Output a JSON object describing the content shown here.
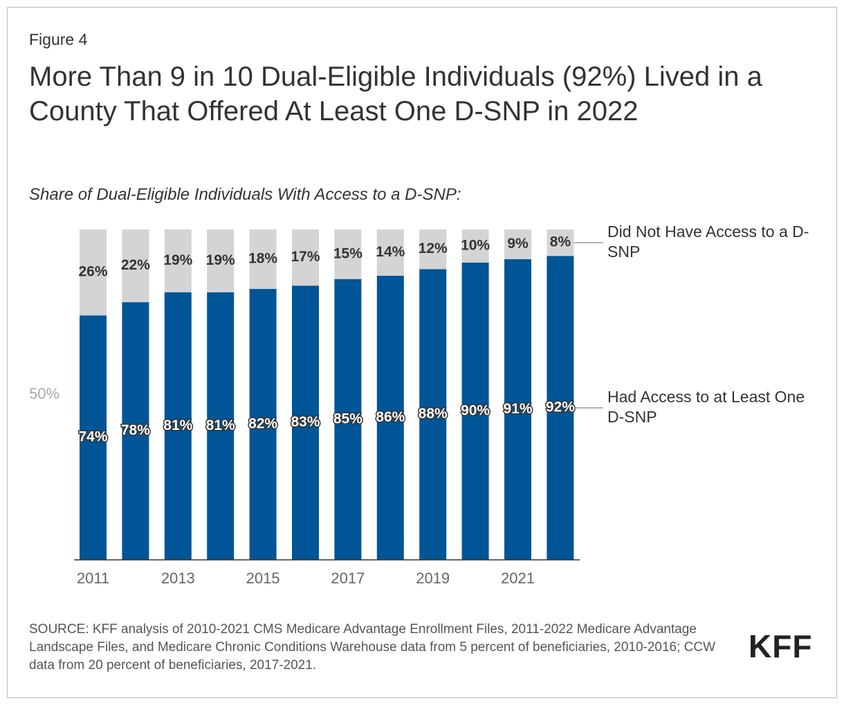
{
  "figure_label": "Figure 4",
  "chart_data": {
    "type": "stacked_bar",
    "title": "More Than 9 in 10 Dual-Eligible Individuals (92%) Lived in a County That Offered At Least One D-SNP in 2022",
    "subtitle": "Share of Dual-Eligible Individuals With Access to a D-SNP:",
    "categories": [
      "2011",
      null,
      "2013",
      null,
      "2015",
      null,
      "2017",
      null,
      "2019",
      null,
      "2021",
      null
    ],
    "series": [
      {
        "name": "Had Access to at Least One D-SNP",
        "color": "#005596",
        "values": [
          74,
          78,
          81,
          81,
          82,
          83,
          85,
          86,
          88,
          90,
          91,
          92
        ],
        "value_labels": [
          "74%",
          "78%",
          "81%",
          "81%",
          "82%",
          "83%",
          "85%",
          "86%",
          "88%",
          "90%",
          "91%",
          "92%"
        ]
      },
      {
        "name": "Did Not Have Access to a D-SNP",
        "color": "#d4d4d4",
        "values": [
          26,
          22,
          19,
          19,
          18,
          17,
          15,
          14,
          12,
          10,
          9,
          8
        ],
        "value_labels": [
          "26%",
          "22%",
          "19%",
          "19%",
          "18%",
          "17%",
          "15%",
          "14%",
          "12%",
          "10%",
          "9%",
          "8%"
        ]
      }
    ],
    "ylim": [
      0,
      100
    ],
    "yticks": [
      {
        "value": 50,
        "label": "50%"
      }
    ],
    "grid": false,
    "legend": "right"
  },
  "source": "SOURCE: KFF analysis of 2010-2021 CMS Medicare Advantage Enrollment Files, 2011-2022 Medicare Advantage Landscape Files, and Medicare Chronic Conditions Warehouse data from 5 percent of beneficiaries, 2010-2016; CCW data from 20 percent of beneficiaries, 2017-2021.",
  "logo": "KFF"
}
